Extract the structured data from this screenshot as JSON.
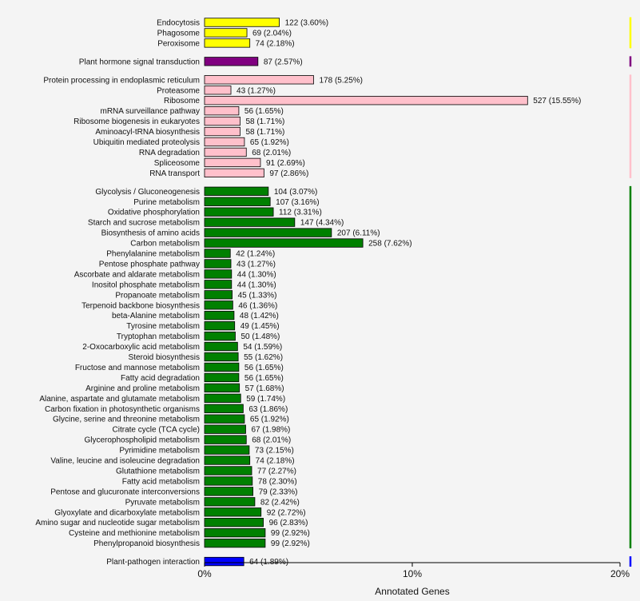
{
  "chart_data": {
    "type": "bar",
    "orientation": "horizontal",
    "xlabel": "Annotated Genes",
    "xlim": [
      0,
      20
    ],
    "xticks": [
      {
        "value": 0,
        "label": "0%"
      },
      {
        "value": 10,
        "label": "10%"
      },
      {
        "value": 20,
        "label": "20%"
      }
    ],
    "grid": false,
    "groups": [
      {
        "color": "#ffff00",
        "items": [
          {
            "name": "Endocytosis",
            "count": 122,
            "percent": 3.6,
            "label": "122 (3.60%)"
          },
          {
            "name": "Phagosome",
            "count": 69,
            "percent": 2.04,
            "label": "69 (2.04%)"
          },
          {
            "name": "Peroxisome",
            "count": 74,
            "percent": 2.18,
            "label": "74 (2.18%)"
          }
        ]
      },
      {
        "color": "#800080",
        "items": [
          {
            "name": "Plant hormone signal transduction",
            "count": 87,
            "percent": 2.57,
            "label": "87 (2.57%)"
          }
        ]
      },
      {
        "color": "#ffc0cb",
        "items": [
          {
            "name": "Protein processing in endoplasmic reticulum",
            "count": 178,
            "percent": 5.25,
            "label": "178 (5.25%)"
          },
          {
            "name": "Proteasome",
            "count": 43,
            "percent": 1.27,
            "label": "43 (1.27%)"
          },
          {
            "name": "Ribosome",
            "count": 527,
            "percent": 15.55,
            "label": "527 (15.55%)"
          },
          {
            "name": "mRNA surveillance pathway",
            "count": 56,
            "percent": 1.65,
            "label": "56 (1.65%)"
          },
          {
            "name": "Ribosome biogenesis in eukaryotes",
            "count": 58,
            "percent": 1.71,
            "label": "58 (1.71%)"
          },
          {
            "name": "Aminoacyl-tRNA biosynthesis",
            "count": 58,
            "percent": 1.71,
            "label": "58 (1.71%)"
          },
          {
            "name": "Ubiquitin mediated proteolysis",
            "count": 65,
            "percent": 1.92,
            "label": "65 (1.92%)"
          },
          {
            "name": "RNA degradation",
            "count": 68,
            "percent": 2.01,
            "label": "68 (2.01%)"
          },
          {
            "name": "Spliceosome",
            "count": 91,
            "percent": 2.69,
            "label": "91 (2.69%)"
          },
          {
            "name": "RNA transport",
            "count": 97,
            "percent": 2.86,
            "label": "97 (2.86%)"
          }
        ]
      },
      {
        "color": "#008000",
        "items": [
          {
            "name": "Glycolysis / Gluconeogenesis",
            "count": 104,
            "percent": 3.07,
            "label": "104 (3.07%)"
          },
          {
            "name": "Purine metabolism",
            "count": 107,
            "percent": 3.16,
            "label": "107 (3.16%)"
          },
          {
            "name": "Oxidative phosphorylation",
            "count": 112,
            "percent": 3.31,
            "label": "112 (3.31%)"
          },
          {
            "name": "Starch and sucrose metabolism",
            "count": 147,
            "percent": 4.34,
            "label": "147 (4.34%)"
          },
          {
            "name": "Biosynthesis of amino acids",
            "count": 207,
            "percent": 6.11,
            "label": "207 (6.11%)"
          },
          {
            "name": "Carbon metabolism",
            "count": 258,
            "percent": 7.62,
            "label": "258 (7.62%)"
          },
          {
            "name": "Phenylalanine metabolism",
            "count": 42,
            "percent": 1.24,
            "label": "42 (1.24%)"
          },
          {
            "name": "Pentose phosphate pathway",
            "count": 43,
            "percent": 1.27,
            "label": "43 (1.27%)"
          },
          {
            "name": "Ascorbate and aldarate metabolism",
            "count": 44,
            "percent": 1.3,
            "label": "44 (1.30%)"
          },
          {
            "name": "Inositol phosphate metabolism",
            "count": 44,
            "percent": 1.3,
            "label": "44 (1.30%)"
          },
          {
            "name": "Propanoate metabolism",
            "count": 45,
            "percent": 1.33,
            "label": "45 (1.33%)"
          },
          {
            "name": "Terpenoid backbone biosynthesis",
            "count": 46,
            "percent": 1.36,
            "label": "46 (1.36%)"
          },
          {
            "name": "beta-Alanine metabolism",
            "count": 48,
            "percent": 1.42,
            "label": "48 (1.42%)"
          },
          {
            "name": "Tyrosine metabolism",
            "count": 49,
            "percent": 1.45,
            "label": "49 (1.45%)"
          },
          {
            "name": "Tryptophan metabolism",
            "count": 50,
            "percent": 1.48,
            "label": "50 (1.48%)"
          },
          {
            "name": "2-Oxocarboxylic acid metabolism",
            "count": 54,
            "percent": 1.59,
            "label": "54 (1.59%)"
          },
          {
            "name": "Steroid biosynthesis",
            "count": 55,
            "percent": 1.62,
            "label": "55 (1.62%)"
          },
          {
            "name": "Fructose and mannose metabolism",
            "count": 56,
            "percent": 1.65,
            "label": "56 (1.65%)"
          },
          {
            "name": "Fatty acid degradation",
            "count": 56,
            "percent": 1.65,
            "label": "56 (1.65%)"
          },
          {
            "name": "Arginine and proline metabolism",
            "count": 57,
            "percent": 1.68,
            "label": "57 (1.68%)"
          },
          {
            "name": "Alanine, aspartate and glutamate metabolism",
            "count": 59,
            "percent": 1.74,
            "label": "59 (1.74%)"
          },
          {
            "name": "Carbon fixation in photosynthetic organisms",
            "count": 63,
            "percent": 1.86,
            "label": "63 (1.86%)"
          },
          {
            "name": "Glycine, serine and threonine metabolism",
            "count": 65,
            "percent": 1.92,
            "label": "65 (1.92%)"
          },
          {
            "name": "Citrate cycle (TCA cycle)",
            "count": 67,
            "percent": 1.98,
            "label": "67 (1.98%)"
          },
          {
            "name": "Glycerophospholipid metabolism",
            "count": 68,
            "percent": 2.01,
            "label": "68 (2.01%)"
          },
          {
            "name": "Pyrimidine metabolism",
            "count": 73,
            "percent": 2.15,
            "label": "73 (2.15%)"
          },
          {
            "name": "Valine, leucine and isoleucine degradation",
            "count": 74,
            "percent": 2.18,
            "label": "74 (2.18%)"
          },
          {
            "name": "Glutathione metabolism",
            "count": 77,
            "percent": 2.27,
            "label": "77 (2.27%)"
          },
          {
            "name": "Fatty acid metabolism",
            "count": 78,
            "percent": 2.3,
            "label": "78 (2.30%)"
          },
          {
            "name": "Pentose and glucuronate interconversions",
            "count": 79,
            "percent": 2.33,
            "label": "79 (2.33%)"
          },
          {
            "name": "Pyruvate metabolism",
            "count": 82,
            "percent": 2.42,
            "label": "82 (2.42%)"
          },
          {
            "name": "Glyoxylate and dicarboxylate metabolism",
            "count": 92,
            "percent": 2.72,
            "label": "92 (2.72%)"
          },
          {
            "name": "Amino sugar and nucleotide sugar metabolism",
            "count": 96,
            "percent": 2.83,
            "label": "96 (2.83%)"
          },
          {
            "name": "Cysteine and methionine metabolism",
            "count": 99,
            "percent": 2.92,
            "label": "99 (2.92%)"
          },
          {
            "name": "Phenylpropanoid biosynthesis",
            "count": 99,
            "percent": 2.92,
            "label": "99 (2.92%)"
          }
        ]
      },
      {
        "color": "#0000ff",
        "items": [
          {
            "name": "Plant-pathogen interaction",
            "count": 64,
            "percent": 1.89,
            "label": "64 (1.89%)"
          }
        ]
      }
    ]
  }
}
